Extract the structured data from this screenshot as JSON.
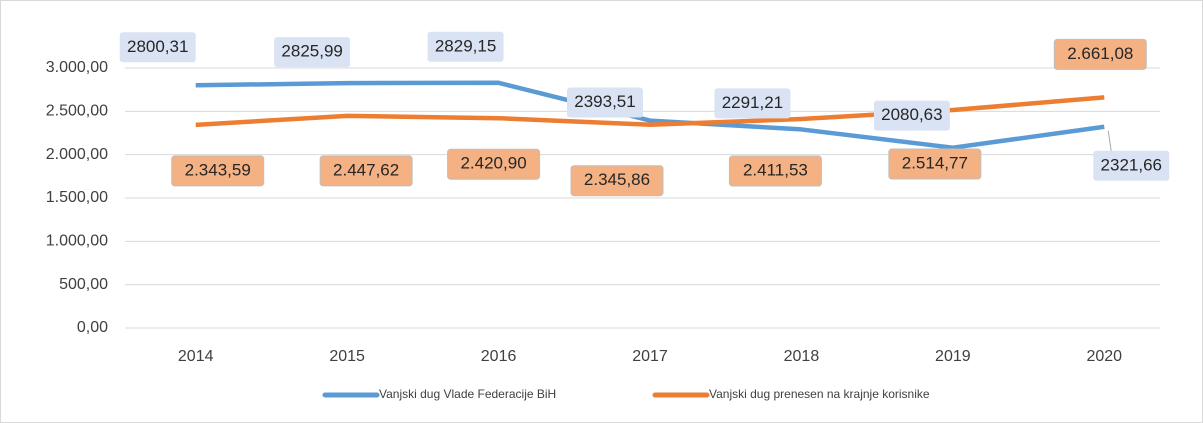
{
  "chart_data": {
    "type": "line",
    "categories": [
      "2014",
      "2015",
      "2016",
      "2017",
      "2018",
      "2019",
      "2020"
    ],
    "series": [
      {
        "name": "Vanjski dug Vlade Federacije BiH",
        "color": "#5b9bd5",
        "values": [
          2800.31,
          2825.99,
          2829.15,
          2393.51,
          2291.21,
          2080.63,
          2321.66
        ],
        "value_labels": [
          "2800,31",
          "2825,99",
          "2829,15",
          "2393,51",
          "2291,21",
          "2080,63",
          "2321,66"
        ]
      },
      {
        "name": "Vanjski dug prenesen na krajnje korisnike",
        "color": "#ed7d31",
        "values": [
          2343.59,
          2447.62,
          2420.9,
          2345.86,
          2411.53,
          2514.77,
          2661.08
        ],
        "value_labels": [
          "2.343,59",
          "2.447,62",
          "2.420,90",
          "2.345,86",
          "2.411,53",
          "2.514,77",
          "2.661,08"
        ]
      }
    ],
    "ylim": [
      0,
      3000
    ],
    "yticks": [
      {
        "value": 0,
        "label": "0,00"
      },
      {
        "value": 500,
        "label": "500,00"
      },
      {
        "value": 1000,
        "label": "1.000,00"
      },
      {
        "value": 1500,
        "label": "1.500,00"
      },
      {
        "value": 2000,
        "label": "2.000,00"
      },
      {
        "value": 2500,
        "label": "2.500,00"
      },
      {
        "value": 3000,
        "label": "3.000,00"
      }
    ],
    "grid": true,
    "legend": "bottom"
  }
}
